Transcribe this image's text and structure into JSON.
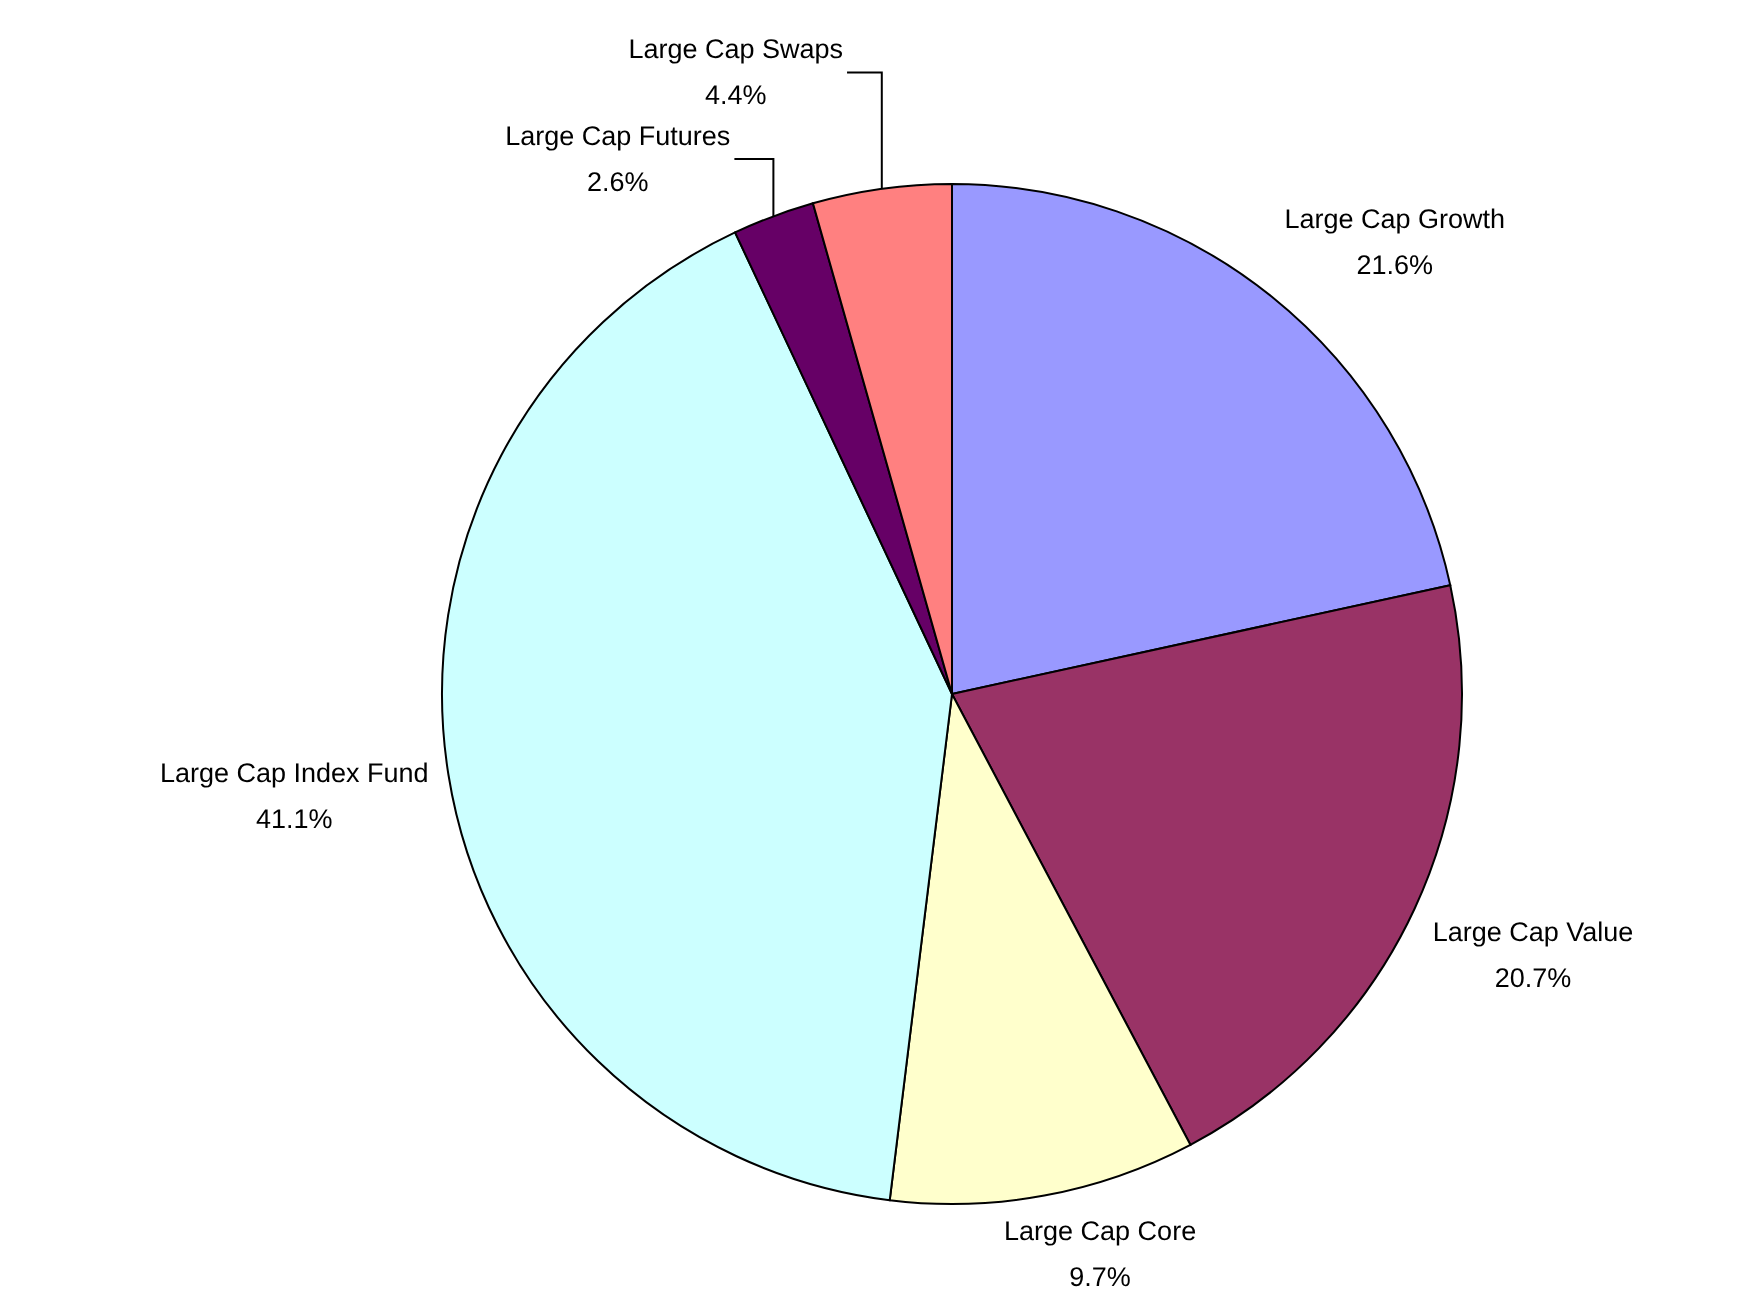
{
  "chart_data": {
    "type": "pie",
    "categories": [
      "Large Cap Growth",
      "Large Cap Value",
      "Large Cap Core",
      "Large Cap Index Fund",
      "Large Cap Futures",
      "Large Cap Swaps"
    ],
    "values": [
      21.6,
      20.7,
      9.7,
      41.1,
      2.6,
      4.4
    ],
    "colors": [
      "#9999ff",
      "#993366",
      "#ffffcc",
      "#ccffff",
      "#660066",
      "#ff8080"
    ],
    "value_labels": [
      "21.6%",
      "20.7%",
      "9.7%",
      "41.1%",
      "2.6%",
      "4.4%"
    ]
  }
}
